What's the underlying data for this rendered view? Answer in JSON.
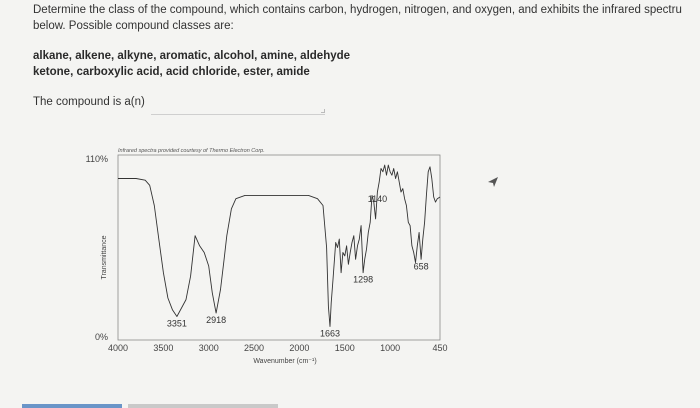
{
  "question": {
    "line1": "Determine the class of the compound, which contains carbon, hydrogen, nitrogen, and oxygen, and exhibits the infrared spectru",
    "line2": "below. Possible compound classes are:"
  },
  "compound_classes": {
    "line1": "alkane, alkene, alkyne, aromatic, alcohol, amine, aldehyde",
    "line2": "ketone, carboxylic acid, acid chloride, ester, amide"
  },
  "answer": {
    "label": "The compound is a(n)",
    "value": "",
    "placeholder": ""
  },
  "chart_data": {
    "type": "line",
    "credit": "Infrared spectra provided courtesy of Thermo Electron Corp.",
    "ylabel": "Transmittance",
    "xlabel": "Wavenumber (cm⁻¹)",
    "y_ticks": [
      "110%",
      "0%"
    ],
    "x_ticks": [
      "4000",
      "3500",
      "3000",
      "2500",
      "2000",
      "1500",
      "1000",
      "450"
    ],
    "xlim": [
      4000,
      450
    ],
    "ylim": [
      0,
      110
    ],
    "series": [
      {
        "x": [
          4000,
          3900,
          3800,
          3700,
          3650,
          3600,
          3550,
          3500,
          3450,
          3400,
          3351,
          3300,
          3250,
          3200,
          3150,
          3100,
          3050,
          3000,
          2960,
          2918,
          2870,
          2830,
          2800,
          2750,
          2700,
          2600,
          2500,
          2400,
          2300,
          2200,
          2100,
          2000,
          1900,
          1800,
          1740,
          1700,
          1680,
          1663,
          1650,
          1630,
          1600,
          1580,
          1560,
          1540,
          1520,
          1500,
          1480,
          1460,
          1440,
          1420,
          1400,
          1380,
          1360,
          1340,
          1320,
          1298,
          1280,
          1260,
          1240,
          1220,
          1200,
          1180,
          1160,
          1140,
          1120,
          1100,
          1080,
          1060,
          1040,
          1020,
          1000,
          980,
          960,
          940,
          920,
          900,
          880,
          860,
          840,
          820,
          800,
          780,
          760,
          740,
          720,
          700,
          680,
          658,
          640,
          620,
          600,
          580,
          560,
          540,
          520,
          500,
          480,
          450
        ],
        "y": [
          96,
          96,
          96,
          95,
          92,
          80,
          60,
          40,
          25,
          18,
          14,
          19,
          24,
          38,
          62,
          56,
          52,
          44,
          28,
          16,
          30,
          48,
          62,
          78,
          84,
          86,
          86,
          86,
          86,
          86,
          86,
          86,
          86,
          84,
          80,
          55,
          20,
          8,
          22,
          36,
          58,
          55,
          60,
          40,
          52,
          50,
          56,
          45,
          52,
          58,
          62,
          48,
          56,
          60,
          68,
          40,
          48,
          54,
          64,
          70,
          86,
          82,
          72,
          88,
          94,
          102,
          100,
          104,
          98,
          104,
          100,
          98,
          102,
          96,
          100,
          94,
          88,
          90,
          84,
          80,
          70,
          68,
          56,
          52,
          46,
          56,
          64,
          48,
          60,
          70,
          86,
          100,
          103,
          96,
          85,
          82,
          84,
          85
        ]
      }
    ],
    "annotations": [
      {
        "label": "3351",
        "x": 3351
      },
      {
        "label": "2918",
        "x": 2918
      },
      {
        "label": "1663",
        "x": 1663
      },
      {
        "label": "1298",
        "x": 1298
      },
      {
        "label": "1140",
        "x": 1140
      },
      {
        "label": "658",
        "x": 658
      }
    ],
    "grid": false,
    "line_color": "#333333"
  }
}
